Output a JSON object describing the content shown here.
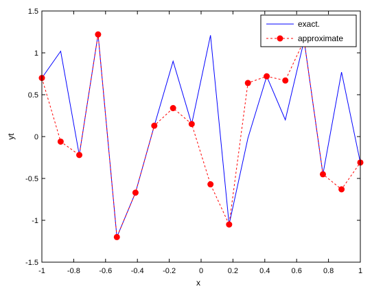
{
  "chart_data": {
    "type": "line",
    "xlabel": "x",
    "ylabel": "yt",
    "xlim": [
      -1,
      1
    ],
    "ylim": [
      -1.5,
      1.5
    ],
    "x_ticks": [
      "-1",
      "-0.8",
      "-0.6",
      "-0.4",
      "-0.2",
      "0",
      "0.2",
      "0.4",
      "0.6",
      "0.8",
      "1"
    ],
    "y_ticks": [
      "-1.5",
      "-1",
      "-0.5",
      "0",
      "0.5",
      "1",
      "1.5"
    ],
    "grid": false,
    "legend_position": "top-right",
    "series": [
      {
        "name": "exact.",
        "color": "#0000ff",
        "style": "solid",
        "x": [
          -1,
          -0.882,
          -0.765,
          -0.647,
          -0.529,
          -0.412,
          -0.294,
          -0.176,
          -0.059,
          0.059,
          0.176,
          0.294,
          0.412,
          0.529,
          0.647,
          0.765,
          0.882,
          1
        ],
        "y": [
          0.7,
          1.02,
          -0.22,
          1.22,
          -1.2,
          -0.67,
          0.13,
          0.9,
          0.15,
          1.21,
          -1.05,
          -0.02,
          0.72,
          0.2,
          1.15,
          -0.45,
          0.77,
          -0.31
        ]
      },
      {
        "name": "approximate",
        "color": "#ff0000",
        "style": "dashed",
        "marker": "circle",
        "x": [
          -1,
          -0.882,
          -0.765,
          -0.647,
          -0.529,
          -0.412,
          -0.294,
          -0.176,
          -0.059,
          0.059,
          0.176,
          0.294,
          0.412,
          0.529,
          0.647,
          0.765,
          0.882,
          1
        ],
        "y": [
          0.7,
          -0.06,
          -0.22,
          1.22,
          -1.2,
          -0.67,
          0.13,
          0.34,
          0.15,
          -0.57,
          -1.05,
          0.64,
          0.72,
          0.67,
          1.15,
          -0.45,
          -0.63,
          -0.31
        ]
      }
    ]
  }
}
